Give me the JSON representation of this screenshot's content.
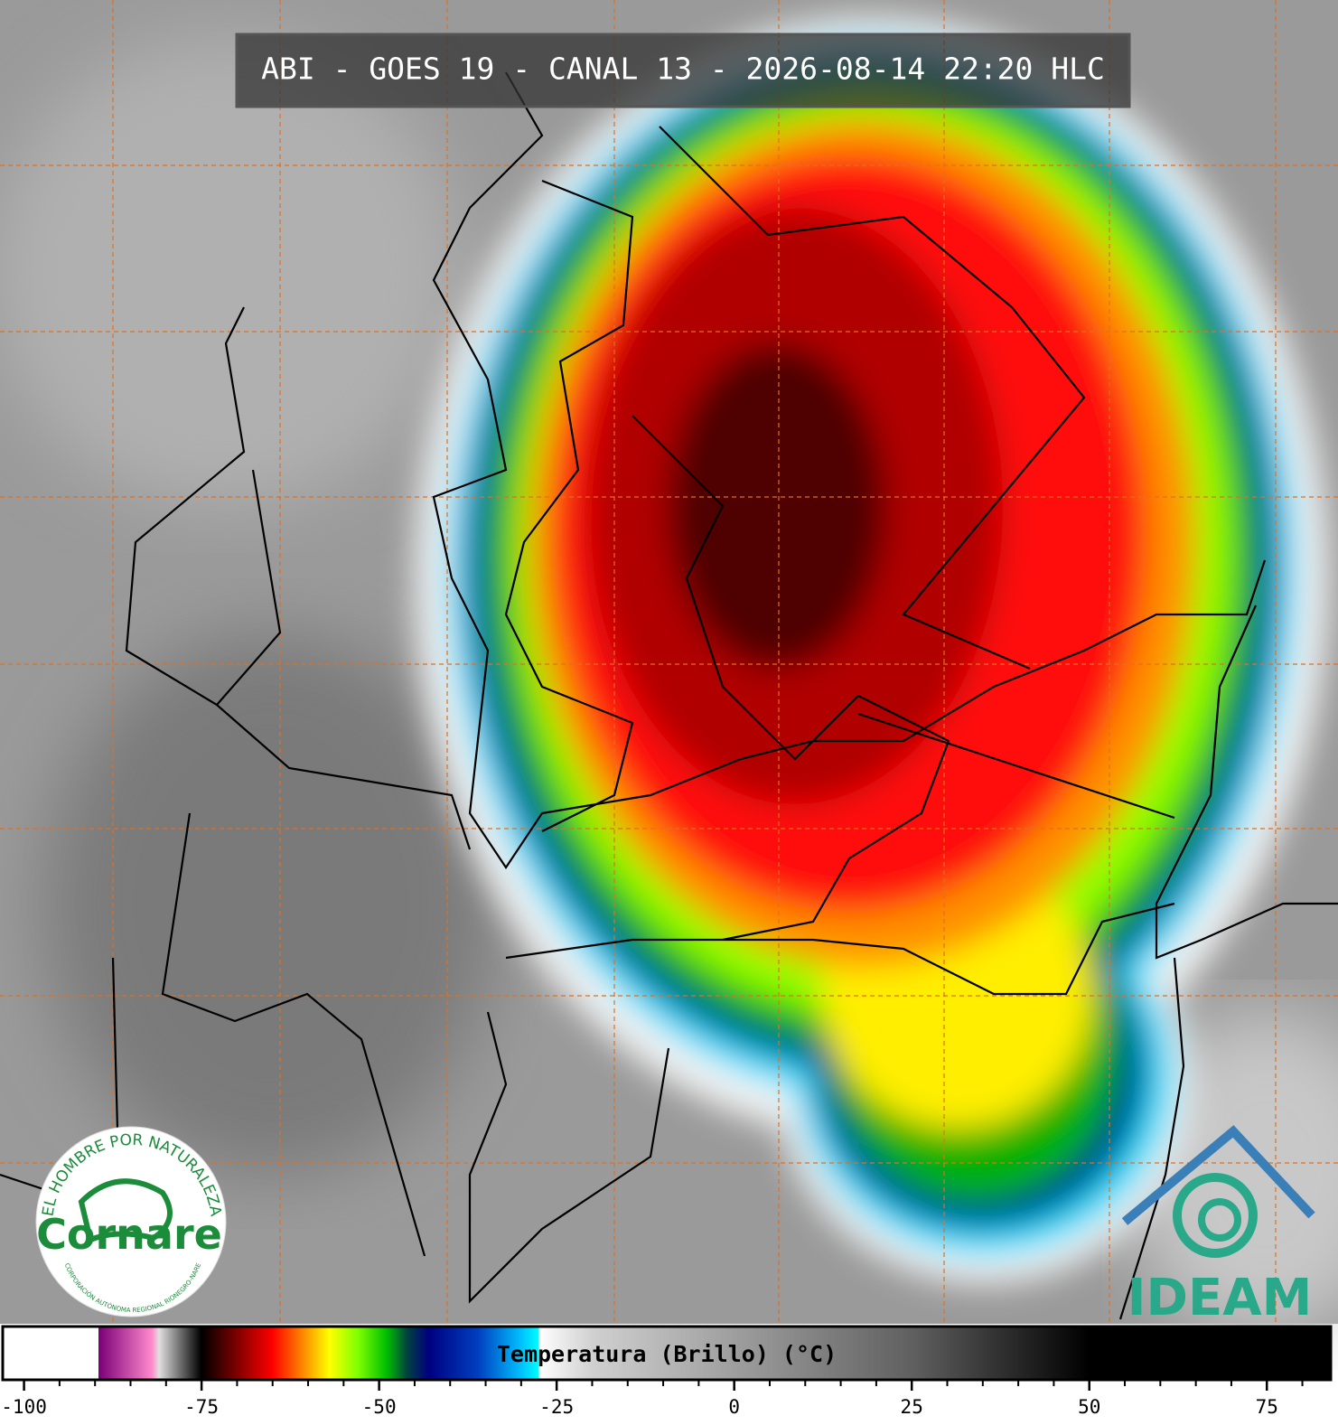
{
  "header": {
    "title": "ABI - GOES 19 - CANAL 13 - 2026-08-14 22:20 HLC"
  },
  "colorbar": {
    "label": "Temperatura (Brillo) (°C)",
    "xlim": [
      -103,
      84
    ],
    "xticks": [
      -100,
      -75,
      -50,
      -25,
      0,
      25,
      50,
      75
    ],
    "xticks_minor": [
      -95,
      -90,
      -85,
      -80,
      -70,
      -65,
      -60,
      -55,
      -45,
      -40,
      -35,
      -30,
      -20,
      -15,
      -10,
      -5,
      5,
      10,
      15,
      20,
      30,
      35,
      40,
      45,
      55,
      60,
      65,
      70,
      80
    ],
    "stops": [
      {
        "value": -103,
        "color": "#ffffff"
      },
      {
        "value": -89.5,
        "color": "#ffffff"
      },
      {
        "value": -89.5,
        "color": "#7a0077"
      },
      {
        "value": -82,
        "color": "#ff88cc"
      },
      {
        "value": -81,
        "color": "#e0e0e0"
      },
      {
        "value": -75.5,
        "color": "#101010"
      },
      {
        "value": -75,
        "color": "#000000"
      },
      {
        "value": -70,
        "color": "#800000"
      },
      {
        "value": -65,
        "color": "#ff0000"
      },
      {
        "value": -61,
        "color": "#ff8000"
      },
      {
        "value": -57,
        "color": "#ffff00"
      },
      {
        "value": -53,
        "color": "#80ff00"
      },
      {
        "value": -49,
        "color": "#00c000"
      },
      {
        "value": -46,
        "color": "#004040"
      },
      {
        "value": -43,
        "color": "#000080"
      },
      {
        "value": -36,
        "color": "#0040c0"
      },
      {
        "value": -30,
        "color": "#00c0ff"
      },
      {
        "value": -27.5,
        "color": "#00ffff"
      },
      {
        "value": -27.5,
        "color": "#ffffff"
      },
      {
        "value": -20,
        "color": "#d0d0d0"
      },
      {
        "value": 25,
        "color": "#606060"
      },
      {
        "value": 50,
        "color": "#000000"
      },
      {
        "value": 84,
        "color": "#000000"
      }
    ]
  },
  "logos": {
    "cornare": {
      "motto": "EL HOMBRE POR NATURALEZA",
      "name": "Cornare",
      "subtitle": "CORPORACIÓN AUTÓNOMA REGIONAL RIONEGRO-NARE"
    },
    "ideam": {
      "name": "IDEAM"
    }
  }
}
